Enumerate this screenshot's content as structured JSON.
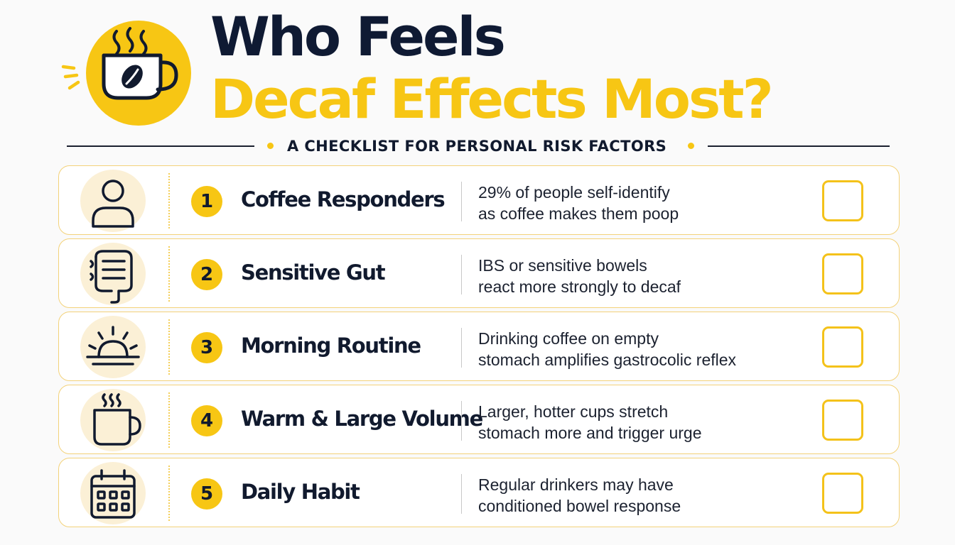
{
  "header": {
    "title_line1": "Who Feels",
    "title_line2": "Decaf Effects Most?",
    "subtitle": "A CHECKLIST FOR PERSONAL RISK FACTORS"
  },
  "colors": {
    "accent": "#f7c614",
    "navy": "#0f1a33",
    "icon_bg": "#fbf0d6",
    "row_border": "#f3d27a"
  },
  "checklist": {
    "items": [
      {
        "number": "1",
        "icon": "person-icon",
        "title": "Coffee Responders",
        "description_line1": "29% of people self-identify",
        "description_line2": "as coffee makes them poop",
        "checked": false
      },
      {
        "number": "2",
        "icon": "intestine-icon",
        "title": "Sensitive Gut",
        "description_line1": "IBS or sensitive bowels",
        "description_line2": "react more strongly to decaf",
        "checked": false
      },
      {
        "number": "3",
        "icon": "sunrise-icon",
        "title": "Morning Routine",
        "description_line1": "Drinking coffee on empty",
        "description_line2": "stomach amplifies gastrocolic reflex",
        "checked": false
      },
      {
        "number": "4",
        "icon": "coffee-cup-icon",
        "title": "Warm & Large Volume",
        "description_line1": "Larger, hotter cups stretch",
        "description_line2": "stomach more and trigger urge",
        "checked": false
      },
      {
        "number": "5",
        "icon": "calendar-icon",
        "title": "Daily Habit",
        "description_line1": "Regular drinkers may have",
        "description_line2": "conditioned bowel response",
        "checked": false
      }
    ]
  }
}
